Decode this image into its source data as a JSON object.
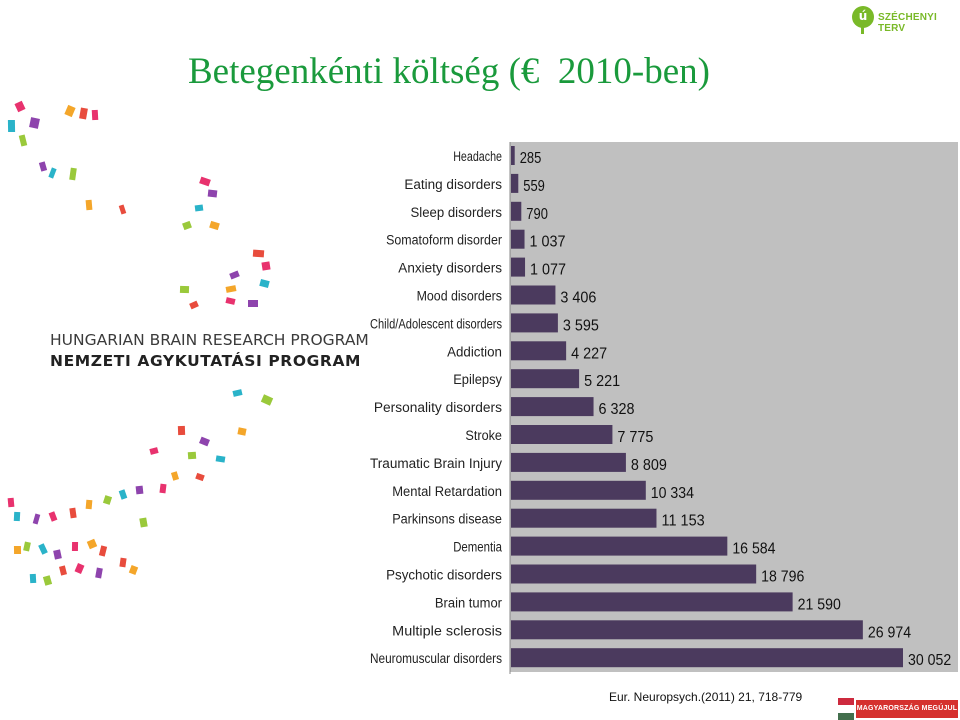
{
  "page": {
    "title": "Betegenkénti költség (€  2010-ben)",
    "top_logo_text": "SZÉCHENYI TERV",
    "top_logo_mark": "ú",
    "program_line1": "HUNGARIAN BRAIN RESEARCH PROGRAM",
    "program_line2": "NEMZETI AGYKUTATÁSI PROGRAM",
    "citation": "Eur. Neuropsych.(2011) 21, 718-779",
    "footer_logo_text": "MAGYARORSZÁG MEGÚJUL"
  },
  "colors": {
    "title": "#1a9a3c",
    "bar": "#4b3a5e",
    "plot_background": "#c0c0c0",
    "logo_green": "#79b928",
    "confetti": [
      "#e8326e",
      "#8e44ad",
      "#2ab3c9",
      "#9ac93b",
      "#f4a62a",
      "#e84c3d"
    ]
  },
  "chart_data": {
    "type": "bar",
    "orientation": "horizontal",
    "categories": [
      "Headache",
      "Eating disorders",
      "Sleep disorders",
      "Somatoform disorder",
      "Anxiety disorders",
      "Mood disorders",
      "Child/Adolescent disorders",
      "Addiction",
      "Epilepsy",
      "Personality disorders",
      "Stroke",
      "Traumatic Brain Injury",
      "Mental Retardation",
      "Parkinsons disease",
      "Dementia",
      "Psychotic disorders",
      "Brain tumor",
      "Multiple sclerosis",
      "Neuromuscular disorders"
    ],
    "values": [
      285,
      559,
      790,
      1037,
      1077,
      3406,
      3595,
      4227,
      5221,
      6328,
      7775,
      8809,
      10334,
      11153,
      16584,
      18796,
      21590,
      26974,
      30052
    ],
    "value_labels": [
      "285",
      "559",
      "790",
      "1 037",
      "1 077",
      "3 406",
      "3 595",
      "4 227",
      "5 221",
      "6 328",
      "7 775",
      "8 809",
      "10 334",
      "11 153",
      "16 584",
      "18 796",
      "21 590",
      "26 974",
      "30 052"
    ],
    "xlim": [
      0,
      32000
    ],
    "grid": false,
    "legend": "none"
  }
}
